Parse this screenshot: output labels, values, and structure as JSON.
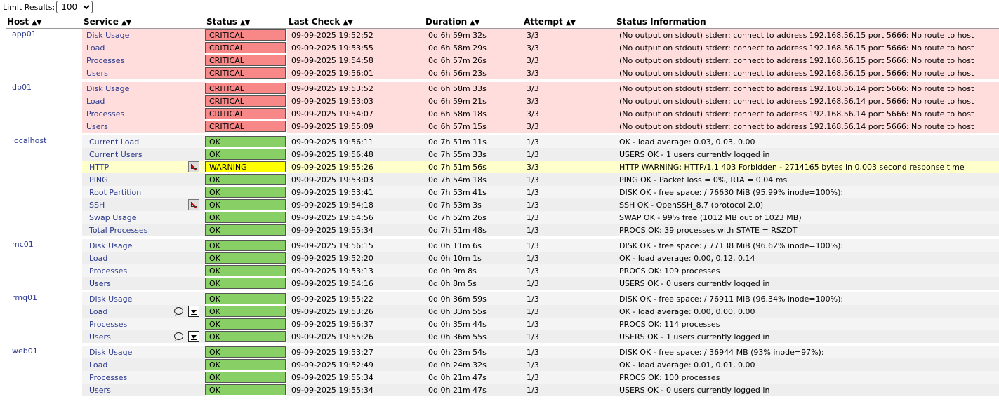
{
  "limit": {
    "label": "Limit Results:",
    "value": "100"
  },
  "headers": {
    "host": "Host",
    "service": "Service",
    "status": "Status",
    "last_check": "Last Check",
    "duration": "Duration",
    "attempt": "Attempt",
    "info": "Status Information"
  },
  "hosts": [
    {
      "name": "app01",
      "services": [
        {
          "name": "Disk Usage",
          "status": "CRITICAL",
          "last": "09-09-2025 19:52:52",
          "dur": "0d 6h 59m 32s",
          "att": "3/3",
          "info": "(No output on stdout) stderr: connect to address 192.168.56.15 port 5666: No route to host"
        },
        {
          "name": "Load",
          "status": "CRITICAL",
          "last": "09-09-2025 19:53:55",
          "dur": "0d 6h 58m 29s",
          "att": "3/3",
          "info": "(No output on stdout) stderr: connect to address 192.168.56.15 port 5666: No route to host"
        },
        {
          "name": "Processes",
          "status": "CRITICAL",
          "last": "09-09-2025 19:54:58",
          "dur": "0d 6h 57m 26s",
          "att": "3/3",
          "info": "(No output on stdout) stderr: connect to address 192.168.56.15 port 5666: No route to host"
        },
        {
          "name": "Users",
          "status": "CRITICAL",
          "last": "09-09-2025 19:56:01",
          "dur": "0d 6h 56m 23s",
          "att": "3/3",
          "info": "(No output on stdout) stderr: connect to address 192.168.56.15 port 5666: No route to host"
        }
      ]
    },
    {
      "name": "db01",
      "services": [
        {
          "name": "Disk Usage",
          "status": "CRITICAL",
          "last": "09-09-2025 19:53:52",
          "dur": "0d 6h 58m 33s",
          "att": "3/3",
          "info": "(No output on stdout) stderr: connect to address 192.168.56.14 port 5666: No route to host"
        },
        {
          "name": "Load",
          "status": "CRITICAL",
          "last": "09-09-2025 19:53:03",
          "dur": "0d 6h 59m 21s",
          "att": "3/3",
          "info": "(No output on stdout) stderr: connect to address 192.168.56.14 port 5666: No route to host"
        },
        {
          "name": "Processes",
          "status": "CRITICAL",
          "last": "09-09-2025 19:54:07",
          "dur": "0d 6h 58m 18s",
          "att": "3/3",
          "info": "(No output on stdout) stderr: connect to address 192.168.56.14 port 5666: No route to host"
        },
        {
          "name": "Users",
          "status": "CRITICAL",
          "last": "09-09-2025 19:55:09",
          "dur": "0d 6h 57m 15s",
          "att": "3/3",
          "info": "(No output on stdout) stderr: connect to address 192.168.56.14 port 5666: No route to host"
        }
      ]
    },
    {
      "name": "localhost",
      "services": [
        {
          "name": "Current Load",
          "status": "OK",
          "last": "09-09-2025 19:56:11",
          "dur": "0d 7h 51m 11s",
          "att": "1/3",
          "info": "OK - load average: 0.03, 0.03, 0.00"
        },
        {
          "name": "Current Users",
          "status": "OK",
          "last": "09-09-2025 19:56:48",
          "dur": "0d 7h 55m 33s",
          "att": "1/3",
          "info": "USERS OK - 1 users currently logged in"
        },
        {
          "name": "HTTP",
          "status": "WARNING",
          "last": "09-09-2025 19:55:26",
          "dur": "0d 7h 51m 56s",
          "att": "3/3",
          "info": "HTTP WARNING: HTTP/1.1 403 Forbidden - 2714165 bytes in 0.003 second response time",
          "icons": [
            "flapping-disabled-icon"
          ]
        },
        {
          "name": "PING",
          "status": "OK",
          "last": "09-09-2025 19:53:03",
          "dur": "0d 7h 54m 18s",
          "att": "1/3",
          "info": "PING OK - Packet loss = 0%, RTA = 0.04 ms"
        },
        {
          "name": "Root Partition",
          "status": "OK",
          "last": "09-09-2025 19:53:41",
          "dur": "0d 7h 53m 41s",
          "att": "1/3",
          "info": "DISK OK - free space: / 76630 MiB (95.99% inode=100%):"
        },
        {
          "name": "SSH",
          "status": "OK",
          "last": "09-09-2025 19:54:18",
          "dur": "0d 7h 53m 3s",
          "att": "1/3",
          "info": "SSH OK - OpenSSH_8.7 (protocol 2.0)",
          "icons": [
            "flapping-disabled-icon"
          ]
        },
        {
          "name": "Swap Usage",
          "status": "OK",
          "last": "09-09-2025 19:54:56",
          "dur": "0d 7h 52m 26s",
          "att": "1/3",
          "info": "SWAP OK - 99% free (1012 MB out of 1023 MB)"
        },
        {
          "name": "Total Processes",
          "status": "OK",
          "last": "09-09-2025 19:55:34",
          "dur": "0d 7h 51m 48s",
          "att": "1/3",
          "info": "PROCS OK: 39 processes with STATE = RSZDT"
        }
      ]
    },
    {
      "name": "mc01",
      "services": [
        {
          "name": "Disk Usage",
          "status": "OK",
          "last": "09-09-2025 19:56:15",
          "dur": "0d 0h 11m 6s",
          "att": "1/3",
          "info": "DISK OK - free space: / 77138 MiB (96.62% inode=100%):"
        },
        {
          "name": "Load",
          "status": "OK",
          "last": "09-09-2025 19:52:20",
          "dur": "0d 0h 10m 1s",
          "att": "1/3",
          "info": "OK - load average: 0.00, 0.12, 0.14"
        },
        {
          "name": "Processes",
          "status": "OK",
          "last": "09-09-2025 19:53:13",
          "dur": "0d 0h 9m 8s",
          "att": "1/3",
          "info": "PROCS OK: 109 processes"
        },
        {
          "name": "Users",
          "status": "OK",
          "last": "09-09-2025 19:54:16",
          "dur": "0d 0h 8m 5s",
          "att": "1/3",
          "info": "USERS OK - 0 users currently logged in"
        }
      ]
    },
    {
      "name": "rmq01",
      "services": [
        {
          "name": "Disk Usage",
          "status": "OK",
          "last": "09-09-2025 19:55:22",
          "dur": "0d 0h 36m 59s",
          "att": "1/3",
          "info": "DISK OK - free space: / 76911 MiB (96.34% inode=100%):"
        },
        {
          "name": "Load",
          "status": "OK",
          "last": "09-09-2025 19:53:26",
          "dur": "0d 0h 33m 55s",
          "att": "1/3",
          "info": "OK - load average: 0.00, 0.00, 0.00",
          "icons": [
            "comment-icon",
            "passive-check-icon"
          ]
        },
        {
          "name": "Processes",
          "status": "OK",
          "last": "09-09-2025 19:56:37",
          "dur": "0d 0h 35m 44s",
          "att": "1/3",
          "info": "PROCS OK: 114 processes"
        },
        {
          "name": "Users",
          "status": "OK",
          "last": "09-09-2025 19:55:26",
          "dur": "0d 0h 36m 55s",
          "att": "1/3",
          "info": "USERS OK - 1 users currently logged in",
          "icons": [
            "comment-icon",
            "passive-check-icon"
          ]
        }
      ]
    },
    {
      "name": "web01",
      "services": [
        {
          "name": "Disk Usage",
          "status": "OK",
          "last": "09-09-2025 19:53:27",
          "dur": "0d 0h 23m 54s",
          "att": "1/3",
          "info": "DISK OK - free space: / 36944 MB (93% inode=97%):"
        },
        {
          "name": "Load",
          "status": "OK",
          "last": "09-09-2025 19:52:49",
          "dur": "0d 0h 24m 32s",
          "att": "1/3",
          "info": "OK - load average: 0.01, 0.01, 0.00"
        },
        {
          "name": "Processes",
          "status": "OK",
          "last": "09-09-2025 19:55:34",
          "dur": "0d 0h 21m 47s",
          "att": "1/3",
          "info": "PROCS OK: 100 processes"
        },
        {
          "name": "Users",
          "status": "OK",
          "last": "09-09-2025 19:55:34",
          "dur": "0d 0h 21m 47s",
          "att": "1/3",
          "info": "USERS OK - 0 users currently logged in"
        }
      ]
    }
  ]
}
